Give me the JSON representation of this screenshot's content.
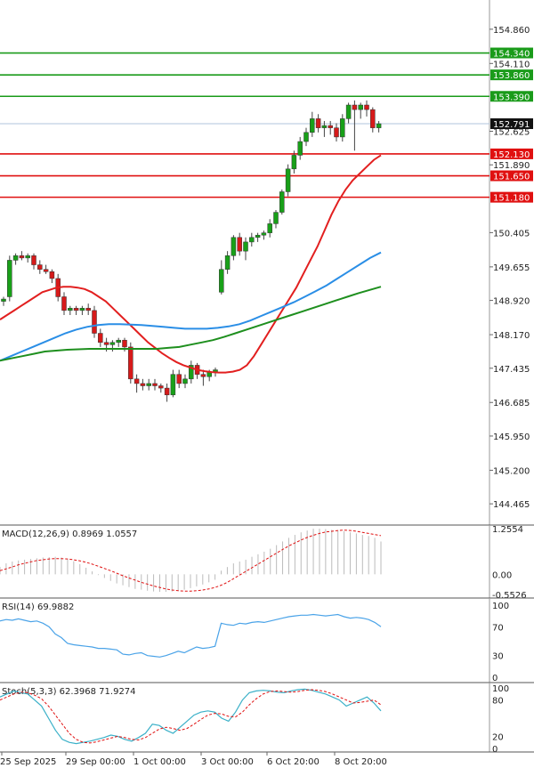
{
  "chart_data": [
    {
      "panel": "price",
      "type": "candlestick",
      "price_ticks": [
        "154.860",
        "154.110",
        "152.625",
        "151.890",
        "150.405",
        "149.655",
        "148.920",
        "148.170",
        "147.435",
        "146.685",
        "145.950",
        "145.200",
        "144.465"
      ],
      "x_labels": [
        "25 Sep 2025",
        "29 Sep 00:00",
        "1 Oct 00:00",
        "3 Oct 00:00",
        "6 Oct 20:00",
        "8 Oct 20:00"
      ],
      "current_price": "152.791",
      "levels": [
        {
          "value": 154.34,
          "label": "154.340",
          "color": "#1a9b1a"
        },
        {
          "value": 153.86,
          "label": "153.860",
          "color": "#1a9b1a"
        },
        {
          "value": 153.39,
          "label": "153.390",
          "color": "#1a9b1a"
        },
        {
          "value": 152.13,
          "label": "152.130",
          "color": "#e01010"
        },
        {
          "value": 151.65,
          "label": "151.650",
          "color": "#e01010"
        },
        {
          "value": 151.18,
          "label": "151.180",
          "color": "#e01010"
        }
      ],
      "candles": [
        [
          148.9,
          149.0,
          148.8,
          148.95
        ],
        [
          149.0,
          149.9,
          148.9,
          149.8
        ],
        [
          149.8,
          149.95,
          149.7,
          149.9
        ],
        [
          149.9,
          150.0,
          149.8,
          149.85
        ],
        [
          149.85,
          149.95,
          149.75,
          149.9
        ],
        [
          149.9,
          149.95,
          149.6,
          149.7
        ],
        [
          149.7,
          149.8,
          149.5,
          149.6
        ],
        [
          149.6,
          149.7,
          149.5,
          149.55
        ],
        [
          149.55,
          149.6,
          149.3,
          149.4
        ],
        [
          149.4,
          149.5,
          148.9,
          149.0
        ],
        [
          149.0,
          149.1,
          148.6,
          148.7
        ],
        [
          148.7,
          148.8,
          148.6,
          148.75
        ],
        [
          148.75,
          148.8,
          148.6,
          148.7
        ],
        [
          148.7,
          148.8,
          148.6,
          148.75
        ],
        [
          148.75,
          148.85,
          148.6,
          148.7
        ],
        [
          148.7,
          148.8,
          148.1,
          148.2
        ],
        [
          148.2,
          148.3,
          147.9,
          148.0
        ],
        [
          148.0,
          148.1,
          147.8,
          147.95
        ],
        [
          147.95,
          148.05,
          147.8,
          148.0
        ],
        [
          148.0,
          148.1,
          147.9,
          148.05
        ],
        [
          148.05,
          148.1,
          147.8,
          147.9
        ],
        [
          147.9,
          148.0,
          147.1,
          147.2
        ],
        [
          147.2,
          147.3,
          146.9,
          147.1
        ],
        [
          147.1,
          147.2,
          146.95,
          147.05
        ],
        [
          147.05,
          147.2,
          146.95,
          147.1
        ],
        [
          147.1,
          147.2,
          146.95,
          147.05
        ],
        [
          147.05,
          147.1,
          146.9,
          147.0
        ],
        [
          147.0,
          147.1,
          146.7,
          146.85
        ],
        [
          146.85,
          147.4,
          146.8,
          147.3
        ],
        [
          147.3,
          147.4,
          147.0,
          147.1
        ],
        [
          147.1,
          147.3,
          147.0,
          147.2
        ],
        [
          147.2,
          147.6,
          147.1,
          147.5
        ],
        [
          147.5,
          147.55,
          147.2,
          147.3
        ],
        [
          147.3,
          147.4,
          147.05,
          147.25
        ],
        [
          147.25,
          147.4,
          147.15,
          147.35
        ],
        [
          147.35,
          147.45,
          147.25,
          147.4
        ],
        [
          149.1,
          149.8,
          149.05,
          149.6
        ],
        [
          149.6,
          150.0,
          149.5,
          149.9
        ],
        [
          149.9,
          150.35,
          149.8,
          150.3
        ],
        [
          150.3,
          150.4,
          149.9,
          150.0
        ],
        [
          150.0,
          150.3,
          149.8,
          150.2
        ],
        [
          150.2,
          150.4,
          150.1,
          150.3
        ],
        [
          150.3,
          150.4,
          150.2,
          150.35
        ],
        [
          150.35,
          150.45,
          150.25,
          150.4
        ],
        [
          150.4,
          150.7,
          150.3,
          150.6
        ],
        [
          150.6,
          150.9,
          150.5,
          150.85
        ],
        [
          150.85,
          151.35,
          150.8,
          151.3
        ],
        [
          151.3,
          151.9,
          151.2,
          151.8
        ],
        [
          151.8,
          152.2,
          151.7,
          152.1
        ],
        [
          152.1,
          152.5,
          152.0,
          152.4
        ],
        [
          152.4,
          152.7,
          152.3,
          152.6
        ],
        [
          152.6,
          153.05,
          152.5,
          152.9
        ],
        [
          152.9,
          153.0,
          152.6,
          152.7
        ],
        [
          152.7,
          152.85,
          152.5,
          152.75
        ],
        [
          152.75,
          152.85,
          152.55,
          152.7
        ],
        [
          152.7,
          152.8,
          152.4,
          152.5
        ],
        [
          152.5,
          153.0,
          152.4,
          152.9
        ],
        [
          152.9,
          153.25,
          152.8,
          153.2
        ],
        [
          153.2,
          153.3,
          152.2,
          153.1
        ],
        [
          153.1,
          153.25,
          152.9,
          153.2
        ],
        [
          153.2,
          153.3,
          152.95,
          153.1
        ],
        [
          153.1,
          153.15,
          152.6,
          152.7
        ],
        [
          152.7,
          152.85,
          152.6,
          152.79
        ]
      ],
      "ma_series": [
        {
          "color": "#e21f1f",
          "values": [
            148.5,
            148.6,
            148.7,
            148.8,
            148.9,
            149.0,
            149.1,
            149.15,
            149.2,
            149.22,
            149.22,
            149.2,
            149.17,
            149.1,
            149.0,
            148.9,
            148.75,
            148.6,
            148.45,
            148.3,
            148.15,
            148.0,
            147.88,
            147.76,
            147.66,
            147.57,
            147.5,
            147.45,
            147.4,
            147.37,
            147.35,
            147.34,
            147.34,
            147.36,
            147.4,
            147.5,
            147.7,
            147.95,
            148.2,
            148.45,
            148.7,
            148.95,
            149.2,
            149.5,
            149.8,
            150.1,
            150.45,
            150.8,
            151.1,
            151.35,
            151.55,
            151.7,
            151.85,
            152.0,
            152.1
          ]
        },
        {
          "color": "#2a8ee6",
          "values": [
            147.6,
            147.7,
            147.8,
            147.9,
            148.0,
            148.1,
            148.2,
            148.28,
            148.34,
            148.38,
            148.4,
            148.4,
            148.39,
            148.38,
            148.36,
            148.34,
            148.32,
            148.3,
            148.3,
            148.3,
            148.32,
            148.35,
            148.4,
            148.48,
            148.58,
            148.68,
            148.78,
            148.88,
            149.0,
            149.12,
            149.25,
            149.4,
            149.55,
            149.7,
            149.85,
            149.97
          ]
        },
        {
          "color": "#1e8f1e",
          "values": [
            147.6,
            147.65,
            147.7,
            147.75,
            147.8,
            147.82,
            147.84,
            147.85,
            147.86,
            147.86,
            147.86,
            147.86,
            147.86,
            147.86,
            147.86,
            147.88,
            147.9,
            147.95,
            148.0,
            148.05,
            148.12,
            148.2,
            148.28,
            148.36,
            148.44,
            148.52,
            148.6,
            148.68,
            148.76,
            148.84,
            148.92,
            149.0,
            149.08,
            149.15,
            149.22
          ]
        }
      ]
    },
    {
      "panel": "macd",
      "type": "histogram+line",
      "label": "MACD(12,26,9) 0.8969 1.0557",
      "ticks": [
        "1.2554",
        "0.00",
        "-0.5526"
      ],
      "histogram": [
        0.2,
        0.3,
        0.35,
        0.38,
        0.4,
        0.42,
        0.44,
        0.46,
        0.47,
        0.48,
        0.46,
        0.42,
        0.36,
        0.28,
        0.18,
        0.08,
        -0.02,
        -0.1,
        -0.18,
        -0.25,
        -0.3,
        -0.35,
        -0.4,
        -0.42,
        -0.45,
        -0.47,
        -0.48,
        -0.48,
        -0.47,
        -0.45,
        -0.42,
        -0.38,
        -0.33,
        -0.28,
        -0.22,
        -0.15,
        0.1,
        0.2,
        0.3,
        0.35,
        0.4,
        0.48,
        0.55,
        0.62,
        0.7,
        0.8,
        0.9,
        1.0,
        1.08,
        1.15,
        1.2,
        1.25,
        1.25,
        1.24,
        1.22,
        1.2,
        1.18,
        1.15,
        1.12,
        1.08,
        1.05,
        1.0,
        0.9
      ],
      "signal": [
        0.1,
        0.15,
        0.2,
        0.26,
        0.3,
        0.34,
        0.38,
        0.4,
        0.42,
        0.43,
        0.43,
        0.42,
        0.4,
        0.37,
        0.33,
        0.28,
        0.22,
        0.16,
        0.1,
        0.03,
        -0.04,
        -0.1,
        -0.16,
        -0.22,
        -0.27,
        -0.32,
        -0.36,
        -0.4,
        -0.43,
        -0.45,
        -0.46,
        -0.46,
        -0.45,
        -0.43,
        -0.4,
        -0.36,
        -0.3,
        -0.22,
        -0.12,
        -0.02,
        0.08,
        0.18,
        0.28,
        0.38,
        0.48,
        0.58,
        0.68,
        0.78,
        0.86,
        0.94,
        1.01,
        1.07,
        1.12,
        1.16,
        1.18,
        1.2,
        1.21,
        1.2,
        1.18,
        1.15,
        1.12,
        1.09,
        1.06
      ]
    },
    {
      "panel": "rsi",
      "type": "line",
      "label": "RSI(14) 69.9882",
      "ticks": [
        "100",
        "70",
        "30",
        "0"
      ],
      "values": [
        78,
        80,
        79,
        81,
        79,
        77,
        78,
        75,
        70,
        60,
        55,
        47,
        45,
        44,
        43,
        42,
        40,
        40,
        39,
        38,
        32,
        31,
        33,
        34,
        30,
        29,
        28,
        30,
        33,
        36,
        34,
        38,
        42,
        40,
        41,
        43,
        75,
        73,
        72,
        75,
        74,
        76,
        77,
        76,
        78,
        80,
        82,
        84,
        85,
        86,
        86,
        87,
        86,
        85,
        86,
        87,
        84,
        82,
        83,
        82,
        80,
        76,
        70
      ]
    },
    {
      "panel": "stochastic",
      "type": "line",
      "label": "Stoch(5,3,3) 62.3968 71.9274",
      "ticks": [
        "100",
        "80",
        "20",
        "0"
      ],
      "main": [
        85,
        90,
        95,
        92,
        90,
        80,
        70,
        50,
        30,
        15,
        10,
        8,
        10,
        12,
        15,
        18,
        22,
        20,
        15,
        12,
        18,
        25,
        40,
        38,
        30,
        25,
        35,
        45,
        55,
        60,
        62,
        60,
        50,
        45,
        60,
        80,
        92,
        95,
        96,
        95,
        93,
        92,
        95,
        97,
        98,
        96,
        93,
        90,
        85,
        80,
        70,
        75,
        80,
        85,
        75,
        62
      ],
      "signal": [
        80,
        85,
        90,
        93,
        92,
        88,
        82,
        70,
        55,
        40,
        25,
        15,
        10,
        9,
        11,
        14,
        17,
        20,
        18,
        15,
        14,
        18,
        25,
        32,
        35,
        33,
        30,
        33,
        40,
        48,
        55,
        58,
        57,
        53,
        52,
        60,
        72,
        82,
        90,
        94,
        95,
        94,
        93,
        94,
        96,
        97,
        96,
        94,
        90,
        85,
        80,
        75,
        76,
        78,
        80,
        72
      ]
    }
  ]
}
